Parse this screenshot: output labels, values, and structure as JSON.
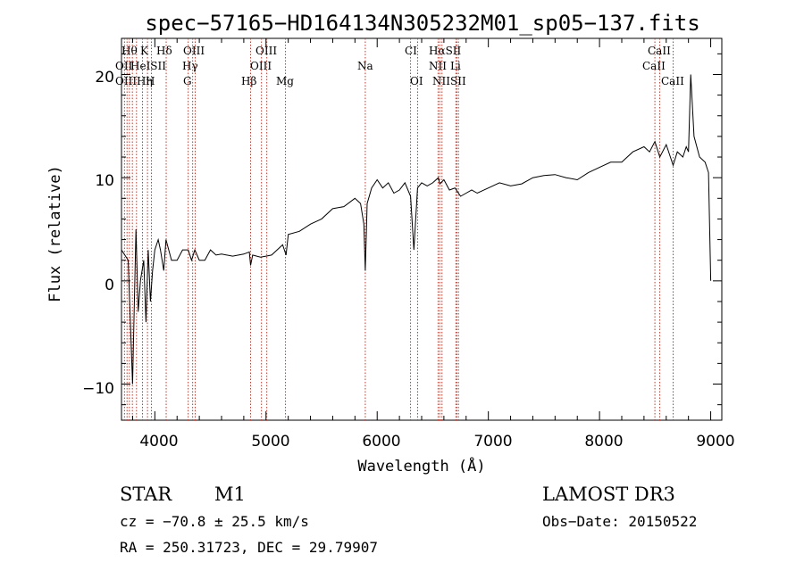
{
  "chart_data": {
    "type": "line",
    "title": "spec−57165−HD164134N305232M01_sp05−137.fits",
    "xlabel": "Wavelength (Å)",
    "ylabel": "Flux (relative)",
    "xlim": [
      3700,
      9100
    ],
    "ylim": [
      -13.5,
      23.5
    ],
    "xticks": [
      4000,
      5000,
      6000,
      7000,
      8000,
      9000
    ],
    "xtick_labels": [
      "4000",
      "5000",
      "6000",
      "7000",
      "8000",
      "9000"
    ],
    "yticks": [
      -10,
      0,
      10,
      20
    ],
    "ytick_labels": [
      "−10",
      "0",
      "10",
      "20"
    ],
    "series": [
      {
        "name": "spectrum",
        "x": [
          3700,
          3760,
          3800,
          3830,
          3850,
          3870,
          3900,
          3920,
          3940,
          3960,
          3980,
          4000,
          4030,
          4050,
          4080,
          4100,
          4150,
          4200,
          4250,
          4300,
          4330,
          4360,
          4400,
          4450,
          4500,
          4550,
          4600,
          4700,
          4800,
          4850,
          4861,
          4880,
          4950,
          5000,
          5050,
          5100,
          5150,
          5180,
          5200,
          5300,
          5400,
          5500,
          5600,
          5700,
          5800,
          5850,
          5880,
          5893,
          5910,
          5950,
          6000,
          6050,
          6100,
          6150,
          6200,
          6250,
          6300,
          6330,
          6363,
          6400,
          6450,
          6500,
          6550,
          6563,
          6600,
          6650,
          6700,
          6750,
          6800,
          6850,
          6900,
          7000,
          7100,
          7200,
          7300,
          7400,
          7500,
          7600,
          7700,
          7800,
          7900,
          8000,
          8100,
          8200,
          8300,
          8400,
          8450,
          8498,
          8542,
          8600,
          8662,
          8700,
          8750,
          8780,
          8800,
          8820,
          8850,
          8900,
          8950,
          8980,
          9000
        ],
        "values": [
          3,
          2,
          -10,
          5,
          -3,
          0,
          2,
          -4,
          3,
          -2,
          1,
          3,
          4,
          3,
          1,
          4,
          2,
          2,
          3,
          3,
          2,
          3,
          2,
          2,
          3,
          2.5,
          2.6,
          2.4,
          2.6,
          2.8,
          1.5,
          2.5,
          2.3,
          2.4,
          2.5,
          3,
          3.5,
          2.5,
          4.5,
          4.8,
          5.5,
          6,
          7,
          7.2,
          8,
          7.5,
          5.5,
          1,
          7.5,
          9,
          9.8,
          9,
          9.5,
          8.5,
          8.8,
          9.5,
          8.2,
          3,
          9,
          9.5,
          9.2,
          9.5,
          10,
          9.4,
          9.8,
          8.8,
          9,
          8.2,
          8.5,
          8.8,
          8.5,
          9,
          9.5,
          9.2,
          9.4,
          10,
          10.2,
          10.3,
          10,
          9.8,
          10.5,
          11,
          11.5,
          11.5,
          12.5,
          13,
          12.5,
          13.5,
          12,
          13.2,
          11.2,
          12.5,
          12,
          13,
          12.5,
          20,
          14,
          12,
          11.5,
          10.5,
          0
        ]
      }
    ],
    "line_labels_top": [
      "Hθ",
      "K",
      "Hδ",
      "OIII",
      "OIII",
      "CI",
      "HαSII"
    ],
    "line_labels_row2": [
      "OII",
      "HeISII",
      "Hγ",
      "OIII",
      "Na",
      "NII",
      "Li"
    ],
    "line_labels_row3": [
      "OIIIHη",
      "H",
      "G",
      "Hβ",
      "Mg",
      "OI",
      "NIISII"
    ],
    "cal_labels": [
      "CaII",
      "CaII",
      "CaII"
    ],
    "annotations": {
      "object_class": "STAR",
      "subclass": "M1",
      "survey": "LAMOST DR3",
      "cz": "cz = −70.8 ± 25.5 km/s",
      "obs_date": "Obs−Date: 20150522",
      "radec": "RA = 250.31723, DEC =  29.79907"
    }
  }
}
